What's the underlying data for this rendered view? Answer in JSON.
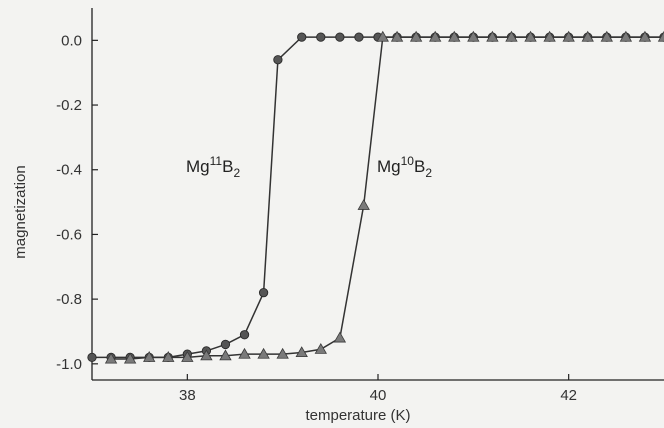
{
  "chart_data": {
    "type": "line",
    "title": "",
    "xlabel": "temperature (K)",
    "ylabel": "magnetization",
    "xlim": [
      37,
      43
    ],
    "ylim": [
      -1.05,
      0.1
    ],
    "xticks": [
      38,
      40,
      42
    ],
    "yticks": [
      0.0,
      -0.2,
      -0.4,
      -0.6,
      -0.8,
      -1.0
    ],
    "ytick_labels": [
      "0.0",
      "-0.2",
      "-0.4",
      "-0.6",
      "-0.8",
      "-1.0"
    ],
    "grid": false,
    "series": [
      {
        "name": "Mg11B2",
        "marker": "circle",
        "color": "#555555",
        "x": [
          37.0,
          37.2,
          37.4,
          37.6,
          37.8,
          38.0,
          38.2,
          38.4,
          38.6,
          38.8,
          38.95,
          39.2,
          39.4,
          39.6,
          39.8,
          40.0,
          40.2,
          40.4,
          40.6,
          40.8,
          41.0,
          41.2,
          41.4,
          41.6,
          41.8,
          42.0,
          42.2,
          42.4,
          42.6,
          42.8,
          43.0
        ],
        "y": [
          -0.98,
          -0.98,
          -0.98,
          -0.98,
          -0.98,
          -0.97,
          -0.96,
          -0.94,
          -0.91,
          -0.78,
          -0.06,
          0.01,
          0.01,
          0.01,
          0.01,
          0.01,
          0.01,
          0.01,
          0.01,
          0.01,
          0.01,
          0.01,
          0.01,
          0.01,
          0.01,
          0.01,
          0.01,
          0.01,
          0.01,
          0.01,
          0.01
        ]
      },
      {
        "name": "Mg10B2",
        "marker": "triangle",
        "color": "#7a7a7a",
        "x": [
          37.2,
          37.4,
          37.6,
          37.8,
          38.0,
          38.2,
          38.4,
          38.6,
          38.8,
          39.0,
          39.2,
          39.4,
          39.6,
          39.85,
          40.05,
          40.2,
          40.4,
          40.6,
          40.8,
          41.0,
          41.2,
          41.4,
          41.6,
          41.8,
          42.0,
          42.2,
          42.4,
          42.6,
          42.8,
          43.0
        ],
        "y": [
          -0.985,
          -0.985,
          -0.98,
          -0.98,
          -0.98,
          -0.975,
          -0.975,
          -0.97,
          -0.97,
          -0.97,
          -0.965,
          -0.955,
          -0.92,
          -0.51,
          0.01,
          0.01,
          0.01,
          0.01,
          0.01,
          0.01,
          0.01,
          0.01,
          0.01,
          0.01,
          0.01,
          0.01,
          0.01,
          0.01,
          0.01,
          0.01
        ]
      }
    ],
    "annotations": [
      {
        "base": "Mg",
        "sup": "11",
        "mid": "B",
        "sub": "2",
        "series": "Mg11B2"
      },
      {
        "base": "Mg",
        "sup": "10",
        "mid": "B",
        "sub": "2",
        "series": "Mg10B2"
      }
    ]
  }
}
